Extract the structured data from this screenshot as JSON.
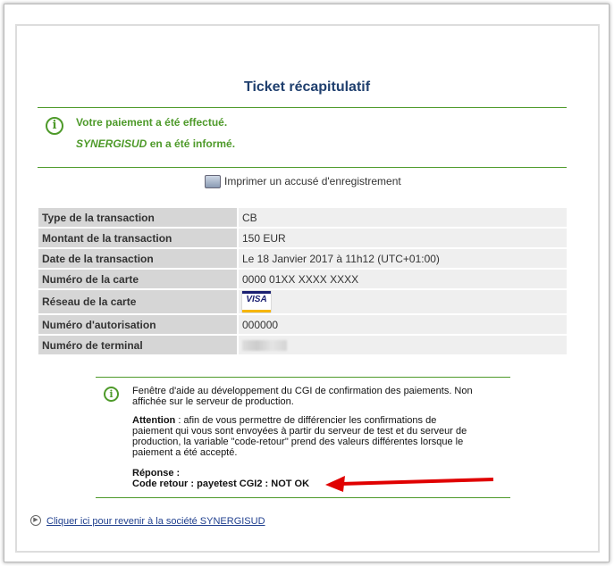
{
  "title": "Ticket récapitulatif",
  "status": {
    "line1": "Votre paiement a été effectué.",
    "merchant": "SYNERGISUD",
    "line2_rest": " en a été informé."
  },
  "print_link": "Imprimer un accusé d'enregistrement",
  "rows": [
    {
      "label": "Type de la transaction",
      "value": "CB"
    },
    {
      "label": "Montant de la transaction",
      "value": "150 EUR"
    },
    {
      "label": "Date de la transaction",
      "value": "Le 18 Janvier 2017 à 11h12 (UTC+01:00)"
    },
    {
      "label": "Numéro de la carte",
      "value": "0000 01XX XXXX XXXX"
    },
    {
      "label": "Réseau de la carte",
      "value": "VISA"
    },
    {
      "label": "Numéro d'autorisation",
      "value": "000000"
    },
    {
      "label": "Numéro de terminal",
      "value": ""
    }
  ],
  "help": {
    "intro": "Fenêtre d'aide au développement du CGI de confirmation des paiements. Non affichée sur le serveur de production.",
    "attention_label": "Attention",
    "attention_text": " :  afin de vous permettre de différencier les confirmations de paiement qui vous sont envoyées à partir du serveur de test et du serveur de production, la variable \"code-retour\" prend des valeurs différentes lorsque le paiement a été accepté.",
    "response_label": "Réponse :",
    "code_line": "Code retour : payetest CGI2 : NOT OK"
  },
  "back_link": "Cliquer ici pour revenir à la société SYNERGISUD",
  "colors": {
    "green": "#4e9a2a",
    "title": "#1f3f6e",
    "arrow": "#e00000"
  }
}
